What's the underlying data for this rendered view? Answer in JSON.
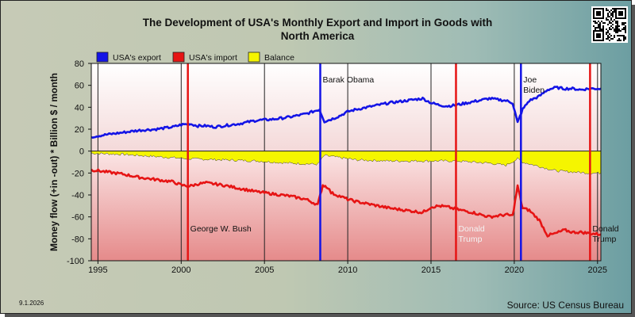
{
  "chart_data": {
    "type": "area",
    "title_line1": "The Development of USA's Monthly Export and Import in Goods with",
    "title_line2": "North America",
    "ylabel": "Money flow (+in -out) * Billion $ / month",
    "ylim": [
      -100,
      80
    ],
    "xlim": [
      1994.6,
      2025.2
    ],
    "y_ticks": [
      80,
      60,
      40,
      20,
      0,
      -20,
      -40,
      -60,
      -80,
      -100
    ],
    "y_tick_labels": [
      "80",
      "60",
      "40",
      "20",
      "0",
      "-20",
      "-40",
      "-60",
      "-80",
      "-100"
    ],
    "x_ticks": [
      1995,
      2000,
      2005,
      2010,
      2015,
      2020,
      2025
    ],
    "x_tick_labels": [
      "1995",
      "2000",
      "2005",
      "2010",
      "2015",
      "2020",
      "2025"
    ],
    "grid": "vertical lines at year ticks",
    "legend_position": "top-left",
    "series": [
      {
        "name": "USA's export",
        "color": "#1414e6",
        "x": [
          1994.6,
          1995.5,
          1996.5,
          1997.5,
          1998.5,
          1999.5,
          2000.0,
          2000.5,
          2001.0,
          2001.5,
          2002.0,
          2002.5,
          2003.5,
          2004.5,
          2005.5,
          2006.5,
          2007.5,
          2008.3,
          2008.6,
          2009.0,
          2009.5,
          2010.0,
          2010.5,
          2011.5,
          2012.5,
          2013.5,
          2014.5,
          2015.0,
          2015.5,
          2016.0,
          2016.5,
          2017.5,
          2018.5,
          2019.0,
          2019.5,
          2019.9,
          2020.2,
          2020.5,
          2020.9,
          2021.5,
          2022.0,
          2022.5,
          2023.0,
          2023.5,
          2024.0,
          2024.5,
          2025.2
        ],
        "values": [
          13,
          15,
          17,
          19,
          20,
          22,
          24,
          25,
          23,
          23,
          22,
          23,
          25,
          28,
          29,
          31,
          34,
          38,
          27,
          29,
          32,
          36,
          38,
          41,
          44,
          46,
          48,
          44,
          42,
          41,
          42,
          45,
          48,
          47,
          46,
          44,
          26,
          38,
          46,
          50,
          56,
          58,
          57,
          57,
          56,
          57,
          57
        ]
      },
      {
        "name": "USA's import",
        "color": "#e61414",
        "x": [
          1994.6,
          1995.5,
          1996.5,
          1997.5,
          1998.5,
          1999.5,
          2000.0,
          2000.5,
          2001.0,
          2001.5,
          2002.0,
          2002.5,
          2003.5,
          2004.5,
          2005.5,
          2006.5,
          2007.5,
          2008.2,
          2008.5,
          2008.8,
          2009.0,
          2009.5,
          2010.0,
          2010.5,
          2011.5,
          2012.5,
          2013.5,
          2014.5,
          2015.0,
          2015.5,
          2016.0,
          2016.5,
          2017.5,
          2018.5,
          2019.0,
          2019.5,
          2019.9,
          2020.2,
          2020.5,
          2020.9,
          2021.5,
          2022.0,
          2022.5,
          2023.0,
          2023.5,
          2024.0,
          2024.5,
          2025.2
        ],
        "values": [
          -17,
          -19,
          -21,
          -24,
          -26,
          -28,
          -31,
          -32,
          -30,
          -29,
          -30,
          -31,
          -34,
          -37,
          -39,
          -41,
          -44,
          -49,
          -31,
          -33,
          -38,
          -41,
          -44,
          -46,
          -49,
          -52,
          -54,
          -56,
          -51,
          -50,
          -51,
          -53,
          -56,
          -60,
          -59,
          -58,
          -59,
          -32,
          -52,
          -54,
          -63,
          -77,
          -75,
          -72,
          -74,
          -74,
          -75,
          -76
        ]
      },
      {
        "name": "Balance",
        "color": "#f5f500",
        "x": [
          1994.6,
          1996.5,
          1998.5,
          2000.5,
          2002.5,
          2004.5,
          2006.5,
          2008.2,
          2008.6,
          2010.5,
          2012.5,
          2014.5,
          2016.5,
          2018.5,
          2019.5,
          2020.2,
          2020.5,
          2021.5,
          2022.5,
          2023.5,
          2024.5,
          2025.2
        ],
        "values": [
          -2,
          -3,
          -5,
          -7,
          -8,
          -9,
          -11,
          -12,
          -4,
          -8,
          -9,
          -9,
          -9,
          -11,
          -13,
          -7,
          -10,
          -14,
          -18,
          -19,
          -20,
          -20
        ]
      }
    ],
    "events": [
      {
        "x": 2000.4,
        "color": "#e61414",
        "label": "George W. Bush",
        "label_color": "#111111"
      },
      {
        "x": 2008.35,
        "color": "#1414e6",
        "label": "Barak Obama",
        "label_color": "#111111"
      },
      {
        "x": 2016.5,
        "color": "#e61414",
        "label": "Donald\nTrump",
        "label_color": "#f2f2f2"
      },
      {
        "x": 2020.4,
        "color": "#1414e6",
        "label": "Joe\nBiden",
        "label_color": "#111111"
      },
      {
        "x": 2024.55,
        "color": "#e61414",
        "label": "Donald\nTrump",
        "label_color": "#111111"
      }
    ]
  },
  "footer": {
    "date": "9.1.2026",
    "source": "Source: US Census Bureau"
  }
}
